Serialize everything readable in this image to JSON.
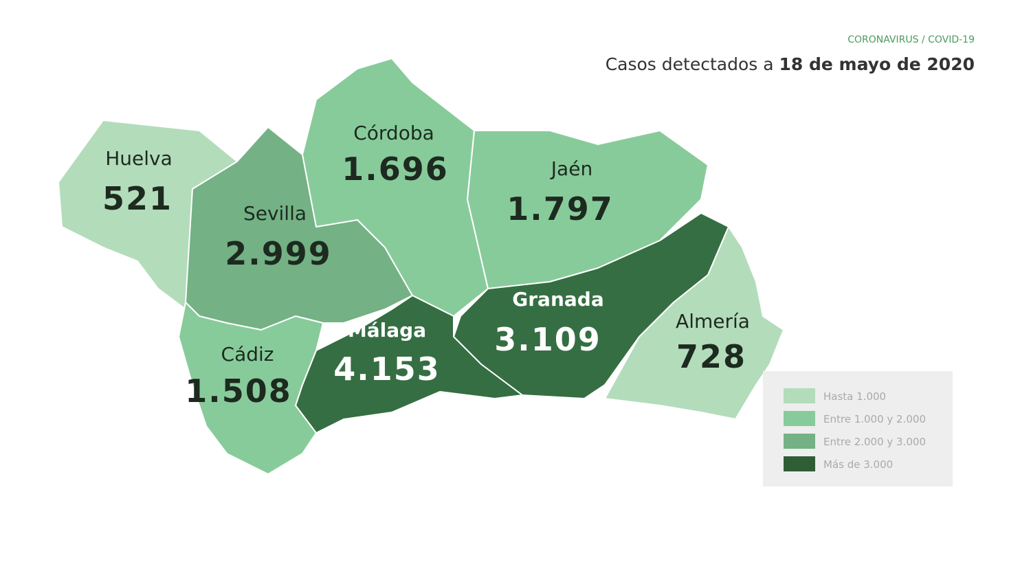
{
  "header": {
    "kicker": "CORONAVIRUS / COVID-19",
    "title": "Casos detectados a",
    "date": "18 de mayo de 2020"
  },
  "provinces": [
    {
      "name": "Huelva",
      "cases": "521",
      "color": "#b3dcbb"
    },
    {
      "name": "Sevilla",
      "cases": "2.999",
      "color": "#74b184"
    },
    {
      "name": "Córdoba",
      "cases": "1.696",
      "color": "#88cb9b"
    },
    {
      "name": "Jaén",
      "cases": "1.797",
      "color": "#88cb9b"
    },
    {
      "name": "Granada",
      "cases": "3.109",
      "color": "#356e42"
    },
    {
      "name": "Almería",
      "cases": "728",
      "color": "#b3dcbb"
    },
    {
      "name": "Málaga",
      "cases": "4.153",
      "color": "#356e42"
    },
    {
      "name": "Cádiz",
      "cases": "1.508",
      "color": "#88cb9b"
    }
  ],
  "legend": [
    {
      "label": "Hasta 1.000",
      "color": "#b3dcbb"
    },
    {
      "label": "Entre 1.000 y 2.000",
      "color": "#88cb9b"
    },
    {
      "label": "Entre 2.000 y 3.000",
      "color": "#74b184"
    },
    {
      "label": "Más de 3.000",
      "color": "#2f5e35"
    }
  ]
}
